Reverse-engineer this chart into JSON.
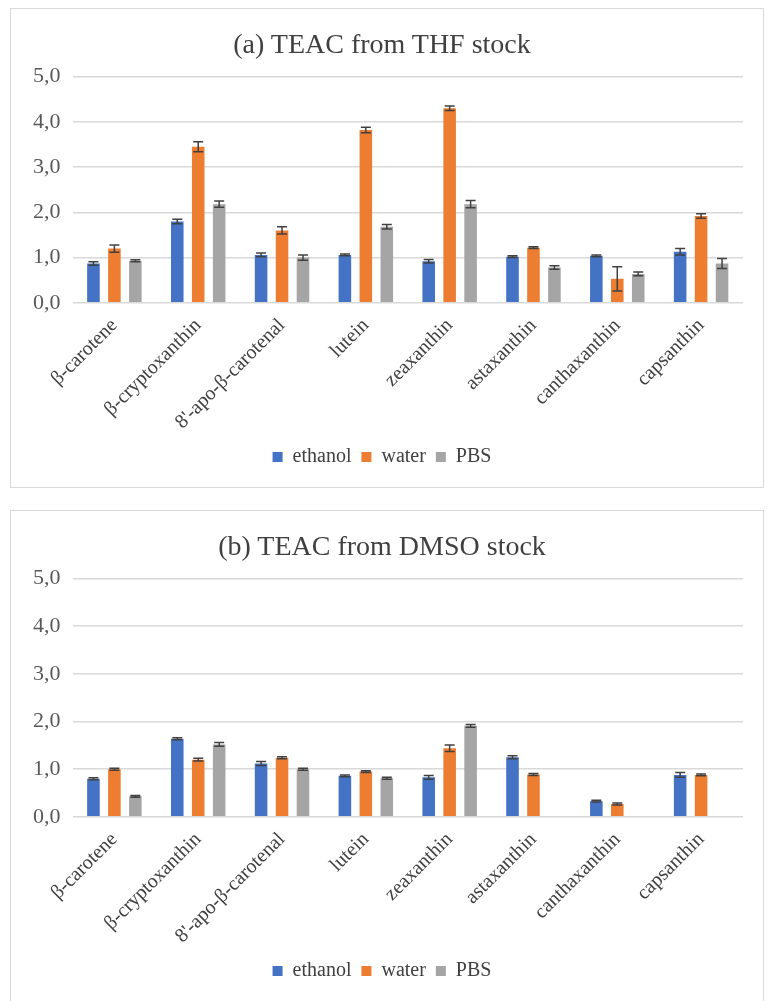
{
  "chart_data": [
    {
      "type": "bar",
      "title": "(a) TEAC from THF stock",
      "categories": [
        "β-carotene",
        "β-cryptoxanthin",
        "8'-apo-β-carotenal",
        "lutein",
        "zeaxanthin",
        "astaxanthin",
        "canthaxanthin",
        "capsanthin"
      ],
      "series": [
        {
          "name": "ethanol",
          "color": "#4472c4",
          "values": [
            0.87,
            1.8,
            1.06,
            1.06,
            0.92,
            1.02,
            1.04,
            1.13
          ],
          "errors": [
            0.04,
            0.05,
            0.04,
            0.02,
            0.04,
            0.02,
            0.02,
            0.07
          ]
        },
        {
          "name": "water",
          "color": "#ed7d31",
          "values": [
            1.2,
            3.45,
            1.6,
            3.82,
            4.3,
            1.22,
            0.53,
            1.92
          ],
          "errors": [
            0.08,
            0.11,
            0.08,
            0.06,
            0.05,
            0.02,
            0.27,
            0.05
          ]
        },
        {
          "name": "PBS",
          "color": "#a5a5a5",
          "values": [
            0.93,
            2.18,
            1.0,
            1.68,
            2.18,
            0.78,
            0.64,
            0.87
          ],
          "errors": [
            0.02,
            0.07,
            0.06,
            0.05,
            0.08,
            0.04,
            0.04,
            0.11
          ]
        }
      ],
      "ylim": [
        0,
        5
      ],
      "yticks": [
        {
          "value": 0,
          "label": "0,0"
        },
        {
          "value": 1,
          "label": "1,0"
        },
        {
          "value": 2,
          "label": "2,0"
        },
        {
          "value": 3,
          "label": "3,0"
        },
        {
          "value": 4,
          "label": "4,0"
        },
        {
          "value": 5,
          "label": "5,0"
        }
      ],
      "grid": "y",
      "legend": "bottom"
    },
    {
      "type": "bar",
      "title": "(b) TEAC from DMSO stock",
      "categories": [
        "β-carotene",
        "β-cryptoxanthin",
        "8'-apo-β-carotenal",
        "lutein",
        "zeaxanthin",
        "astaxanthin",
        "canthaxanthin",
        "capsanthin"
      ],
      "series": [
        {
          "name": "ethanol",
          "color": "#4472c4",
          "values": [
            0.8,
            1.64,
            1.12,
            0.86,
            0.83,
            1.25,
            0.33,
            0.88
          ],
          "errors": [
            0.02,
            0.02,
            0.04,
            0.02,
            0.04,
            0.03,
            0.02,
            0.05
          ]
        },
        {
          "name": "water",
          "color": "#ed7d31",
          "values": [
            1.0,
            1.2,
            1.24,
            0.95,
            1.44,
            0.89,
            0.27,
            0.88
          ],
          "errors": [
            0.02,
            0.03,
            0.02,
            0.02,
            0.07,
            0.02,
            0.02,
            0.02
          ]
        },
        {
          "name": "PBS",
          "color": "#a5a5a5",
          "values": [
            0.43,
            1.52,
            1.0,
            0.81,
            1.91,
            null,
            null,
            null
          ],
          "errors": [
            0.02,
            0.04,
            0.02,
            0.02,
            0.03,
            null,
            null,
            null
          ]
        }
      ],
      "ylim": [
        0,
        5
      ],
      "yticks": [
        {
          "value": 0,
          "label": "0,0"
        },
        {
          "value": 1,
          "label": "1,0"
        },
        {
          "value": 2,
          "label": "2,0"
        },
        {
          "value": 3,
          "label": "3,0"
        },
        {
          "value": 4,
          "label": "4,0"
        },
        {
          "value": 5,
          "label": "5,0"
        }
      ],
      "grid": "y",
      "legend": "bottom"
    }
  ]
}
